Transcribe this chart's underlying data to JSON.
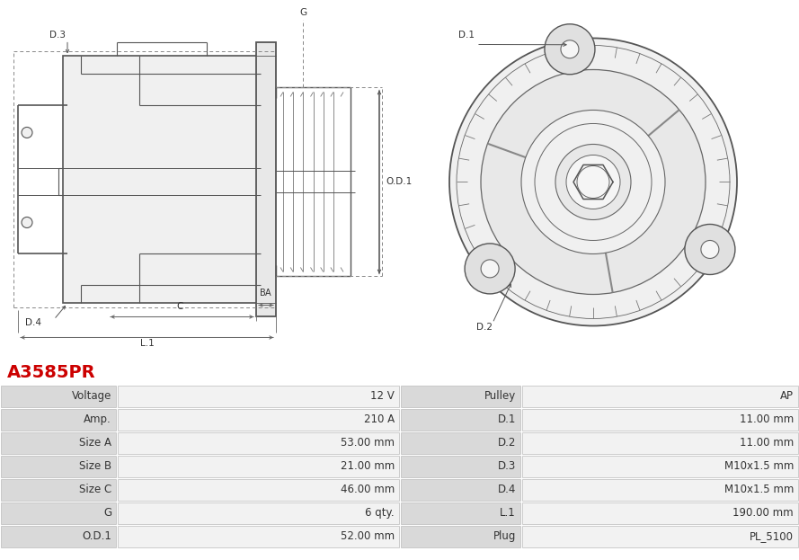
{
  "title": "A3585PR",
  "title_color": "#cc0000",
  "table_rows": [
    [
      "Voltage",
      "12 V",
      "Pulley",
      "AP"
    ],
    [
      "Amp.",
      "210 A",
      "D.1",
      "11.00 mm"
    ],
    [
      "Size A",
      "53.00 mm",
      "D.2",
      "11.00 mm"
    ],
    [
      "Size B",
      "21.00 mm",
      "D.3",
      "M10x1.5 mm"
    ],
    [
      "Size C",
      "46.00 mm",
      "D.4",
      "M10x1.5 mm"
    ],
    [
      "G",
      "6 qty.",
      "L.1",
      "190.00 mm"
    ],
    [
      "O.D.1",
      "52.00 mm",
      "Plug",
      "PL_5100"
    ]
  ],
  "label_bg": "#d9d9d9",
  "value_bg": "#f2f2f2",
  "text_color": "#333333",
  "bg_color": "#ffffff",
  "line_color": "#555555",
  "dim_color": "#666666"
}
